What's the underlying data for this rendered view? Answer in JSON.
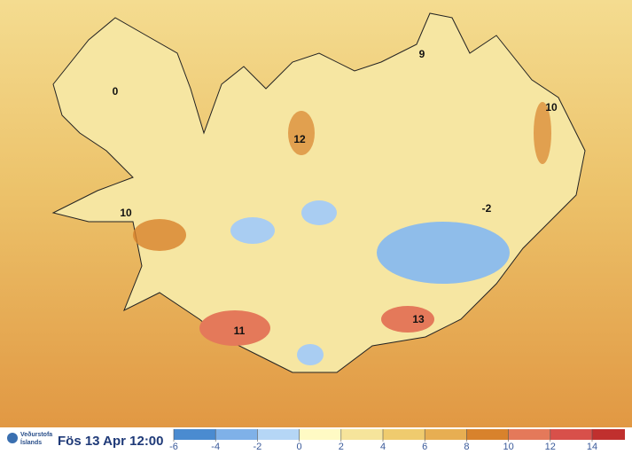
{
  "map_labels": [
    0,
    9,
    10,
    12,
    10,
    -2,
    11,
    13
  ],
  "footer": {
    "date": "Fös 13 Apr 12:00",
    "logo_line1": "Veðurstofa",
    "logo_line2": "Íslands"
  },
  "legend": {
    "ticks": [
      -6,
      -4,
      -2,
      0,
      2,
      4,
      6,
      8,
      10,
      12,
      14
    ],
    "colors": [
      "#4a8bd0",
      "#7fb1e8",
      "#b5d6f6",
      "#fffac4",
      "#f6e49b",
      "#efcb6e",
      "#e7ae52",
      "#d8822c",
      "#e4795a",
      "#d8504a",
      "#c0302e"
    ]
  }
}
